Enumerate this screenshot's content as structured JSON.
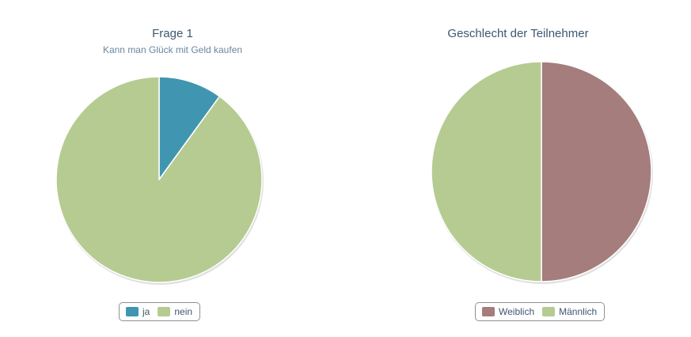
{
  "chart_data": [
    {
      "type": "pie",
      "title": "Frage 1",
      "subtitle": "Kann man Glück mit Geld kaufen",
      "categories": [
        "ja",
        "nein"
      ],
      "values": [
        10,
        90
      ],
      "colors": [
        "#4096b0",
        "#b6cb92"
      ],
      "legend": "bottom",
      "start": "top, clockwise"
    },
    {
      "type": "pie",
      "title": "Geschlecht der Teilnehmer",
      "subtitle": "",
      "categories": [
        "Weiblich",
        "Männlich"
      ],
      "values": [
        50,
        50
      ],
      "colors": [
        "#a47d7c",
        "#b6cb92"
      ],
      "legend": "bottom",
      "start": "top, clockwise"
    }
  ]
}
